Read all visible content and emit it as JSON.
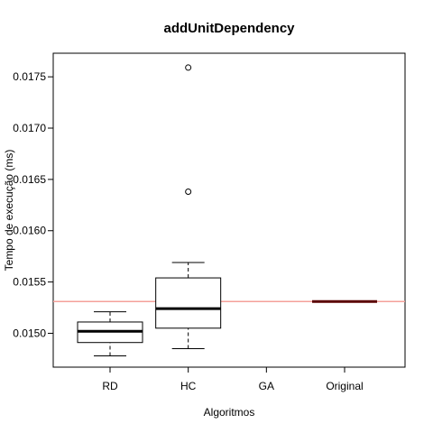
{
  "chart_data": {
    "type": "boxplot",
    "title": "addUnitDependency",
    "xlabel": "Algoritmos",
    "ylabel": "Tempo de execução (ms)",
    "ylim": [
      0.01467,
      0.01773
    ],
    "y_ticks": [
      "0.0150",
      "0.0155",
      "0.0160",
      "0.0165",
      "0.0170",
      "0.0175"
    ],
    "y_tick_values": [
      0.015,
      0.0155,
      0.016,
      0.0165,
      0.017,
      0.0175
    ],
    "categories": [
      "RD",
      "HC",
      "GA",
      "Original"
    ],
    "boxes": [
      {
        "name": "RD",
        "whisker_low": 0.01478,
        "q1": 0.01491,
        "median": 0.01502,
        "q3": 0.01511,
        "whisker_high": 0.01521,
        "outliers": []
      },
      {
        "name": "HC",
        "whisker_low": 0.01485,
        "q1": 0.01505,
        "median": 0.01524,
        "q3": 0.01554,
        "whisker_high": 0.01569,
        "outliers": [
          0.01638,
          0.01759
        ]
      },
      {
        "name": "GA",
        "empty": true
      },
      {
        "name": "Original",
        "whisker_low": 0.01531,
        "q1": 0.01531,
        "median": 0.01531,
        "q3": 0.01531,
        "whisker_high": 0.01531,
        "outliers": []
      }
    ],
    "reference_line": {
      "value": 0.01531,
      "color": "#f4a09a"
    },
    "median_color": "#000000",
    "original_median_color": "#5a0000"
  }
}
